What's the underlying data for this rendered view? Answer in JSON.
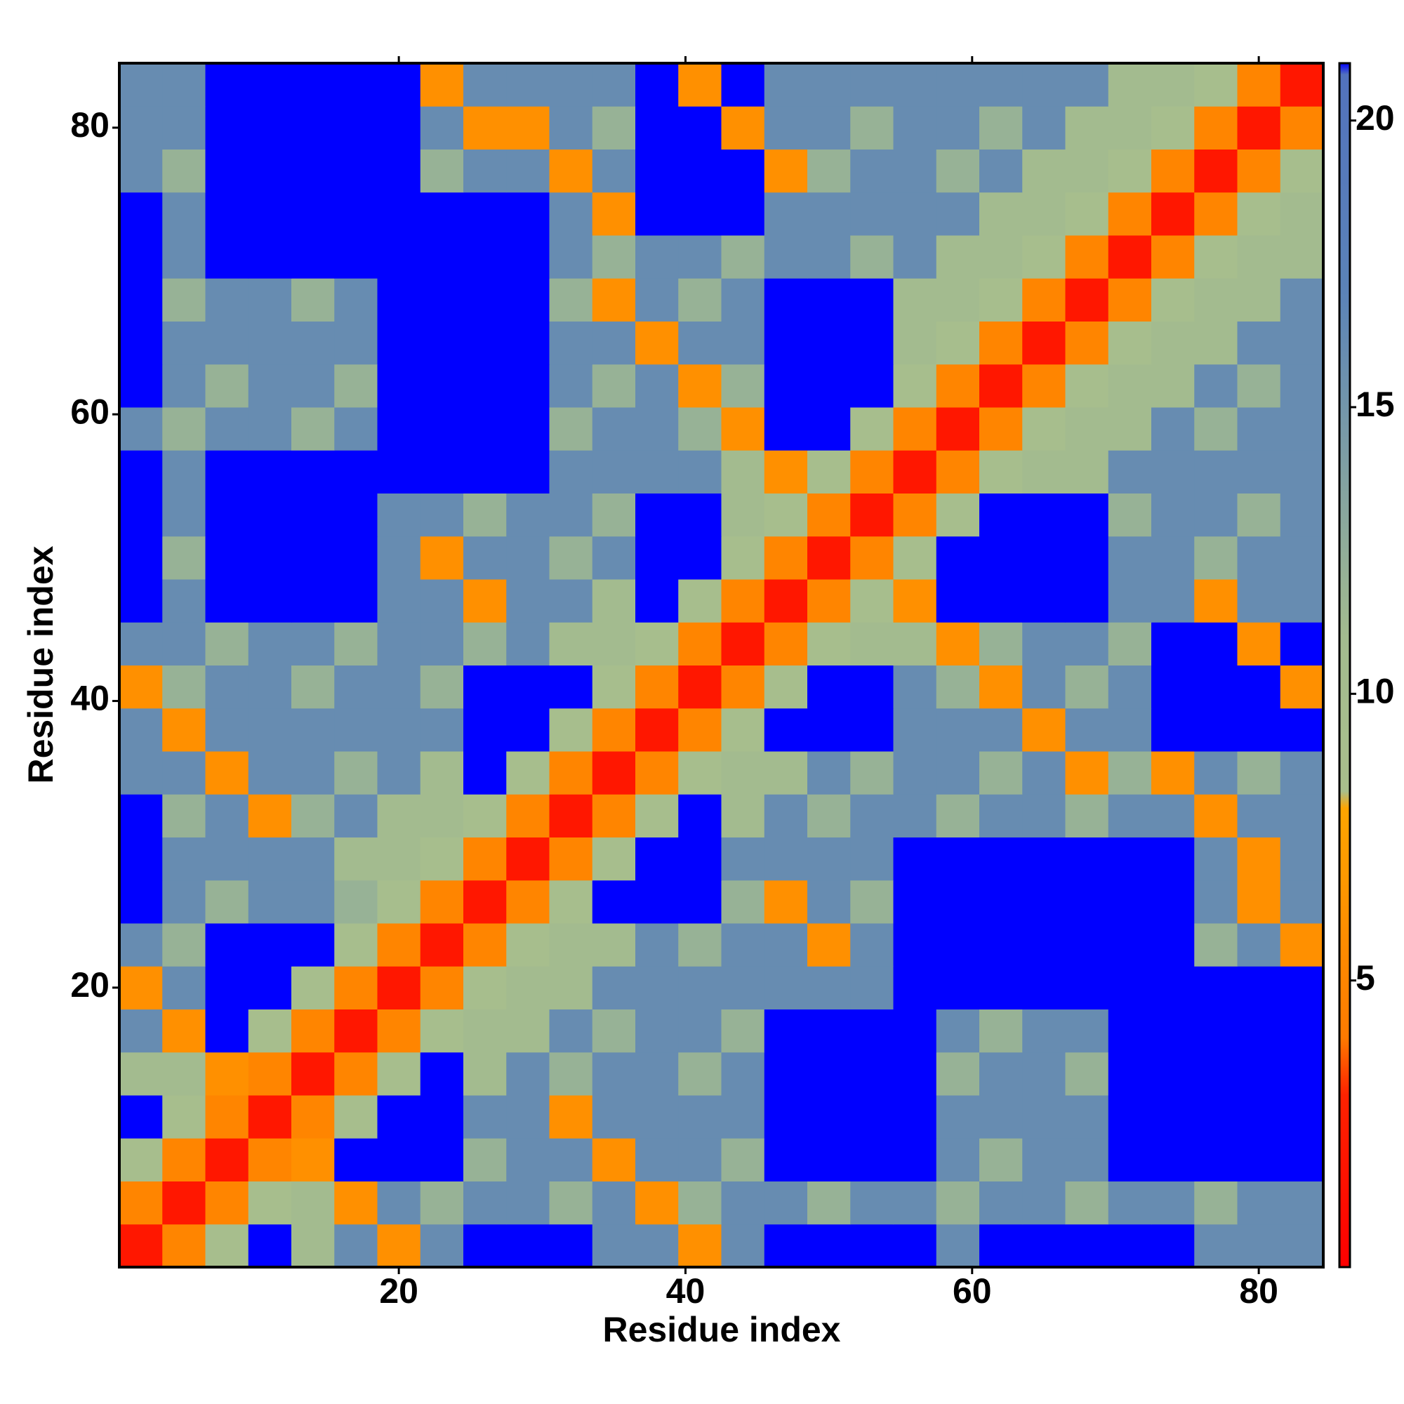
{
  "chart_data": {
    "type": "heatmap",
    "x_label": "Residue index",
    "y_label": "Residue index",
    "x": [
      2,
      5,
      8,
      11,
      14,
      17,
      20,
      23,
      26,
      29,
      32,
      35,
      38,
      41,
      44,
      47,
      50,
      53,
      56,
      59,
      62,
      65,
      68,
      71,
      74,
      77,
      80,
      83
    ],
    "y": [
      2,
      5,
      8,
      11,
      14,
      17,
      20,
      23,
      26,
      29,
      32,
      35,
      38,
      41,
      44,
      47,
      50,
      53,
      56,
      59,
      62,
      65,
      68,
      71,
      74,
      77,
      80,
      83
    ],
    "xlim": [
      0.5,
      84.5
    ],
    "ylim": [
      0.5,
      84.5
    ],
    "xticks": [
      20,
      40,
      60,
      80
    ],
    "yticks": [
      20,
      40,
      60,
      80
    ],
    "zlim": [
      0,
      21
    ],
    "zticks": [
      5,
      10,
      15,
      20
    ],
    "colorscale": [
      [
        0,
        "#ff0000"
      ],
      [
        3,
        "#ff2200"
      ],
      [
        4,
        "#ff7a00"
      ],
      [
        8,
        "#ffa500"
      ],
      [
        8.3,
        "#a9bf8c"
      ],
      [
        11,
        "#a3bb8f"
      ],
      [
        17,
        "#5b83b8"
      ],
      [
        20.8,
        "#5272bd"
      ],
      [
        21,
        "#0000ff"
      ]
    ],
    "z": [
      [
        2,
        5,
        9,
        24,
        11,
        16,
        6,
        16,
        24,
        24,
        24,
        16,
        16,
        6,
        16,
        24,
        24,
        24,
        24,
        16,
        24,
        24,
        24,
        24,
        24,
        16,
        16,
        16
      ],
      [
        5,
        2,
        5,
        9,
        11,
        6,
        16,
        12,
        16,
        16,
        12,
        16,
        6,
        12,
        16,
        16,
        12,
        16,
        16,
        12,
        16,
        16,
        12,
        16,
        16,
        12,
        16,
        16
      ],
      [
        9,
        5,
        2,
        5,
        6,
        24,
        24,
        24,
        12,
        16,
        16,
        6,
        16,
        16,
        12,
        24,
        24,
        24,
        24,
        16,
        12,
        16,
        16,
        24,
        24,
        24,
        24,
        24
      ],
      [
        24,
        9,
        5,
        2,
        5,
        9,
        24,
        24,
        16,
        16,
        6,
        16,
        16,
        16,
        16,
        24,
        24,
        24,
        24,
        16,
        16,
        16,
        16,
        24,
        24,
        24,
        24,
        24
      ],
      [
        11,
        11,
        6,
        5,
        2,
        5,
        9,
        24,
        11,
        16,
        12,
        16,
        16,
        12,
        16,
        24,
        24,
        24,
        24,
        12,
        16,
        16,
        12,
        24,
        24,
        24,
        24,
        24
      ],
      [
        16,
        6,
        24,
        9,
        5,
        2,
        5,
        9,
        11,
        11,
        16,
        12,
        16,
        16,
        12,
        24,
        24,
        24,
        24,
        16,
        12,
        16,
        16,
        24,
        24,
        24,
        24,
        24
      ],
      [
        6,
        16,
        24,
        24,
        9,
        5,
        2,
        5,
        9,
        11,
        11,
        16,
        16,
        16,
        16,
        16,
        16,
        16,
        24,
        24,
        24,
        24,
        24,
        24,
        24,
        24,
        24,
        24
      ],
      [
        16,
        12,
        24,
        24,
        24,
        9,
        5,
        2,
        5,
        9,
        11,
        11,
        16,
        12,
        16,
        16,
        6,
        16,
        24,
        24,
        24,
        24,
        24,
        24,
        24,
        12,
        16,
        6
      ],
      [
        24,
        16,
        12,
        16,
        16,
        12,
        9,
        5,
        2,
        5,
        9,
        24,
        24,
        24,
        12,
        6,
        16,
        12,
        24,
        24,
        24,
        24,
        24,
        24,
        24,
        16,
        6,
        16
      ],
      [
        24,
        16,
        16,
        16,
        16,
        11,
        11,
        9,
        5,
        2,
        5,
        9,
        24,
        24,
        16,
        16,
        16,
        16,
        24,
        24,
        24,
        24,
        24,
        24,
        24,
        16,
        6,
        16
      ],
      [
        24,
        12,
        16,
        6,
        12,
        16,
        11,
        11,
        9,
        5,
        2,
        5,
        9,
        24,
        11,
        16,
        12,
        16,
        16,
        12,
        16,
        16,
        12,
        16,
        16,
        6,
        16,
        16
      ],
      [
        16,
        16,
        6,
        16,
        16,
        12,
        16,
        11,
        24,
        9,
        5,
        2,
        5,
        9,
        11,
        11,
        16,
        12,
        16,
        16,
        12,
        16,
        6,
        12,
        6,
        16,
        12,
        16
      ],
      [
        16,
        6,
        16,
        16,
        16,
        16,
        16,
        16,
        24,
        24,
        9,
        5,
        2,
        5,
        9,
        24,
        24,
        24,
        16,
        16,
        16,
        6,
        16,
        16,
        24,
        24,
        24,
        24
      ],
      [
        6,
        12,
        16,
        16,
        12,
        16,
        16,
        12,
        24,
        24,
        24,
        9,
        5,
        2,
        5,
        9,
        24,
        24,
        16,
        12,
        6,
        16,
        12,
        16,
        24,
        24,
        24,
        6
      ],
      [
        16,
        16,
        12,
        16,
        16,
        12,
        16,
        16,
        12,
        16,
        11,
        11,
        9,
        5,
        2,
        5,
        9,
        11,
        11,
        6,
        12,
        16,
        16,
        12,
        24,
        24,
        6,
        24
      ],
      [
        24,
        16,
        24,
        24,
        24,
        24,
        16,
        16,
        6,
        16,
        16,
        11,
        24,
        9,
        5,
        2,
        5,
        9,
        6,
        24,
        24,
        24,
        24,
        16,
        16,
        6,
        16,
        16
      ],
      [
        24,
        12,
        24,
        24,
        24,
        24,
        16,
        6,
        16,
        16,
        12,
        16,
        24,
        24,
        9,
        5,
        2,
        5,
        9,
        24,
        24,
        24,
        24,
        16,
        16,
        12,
        16,
        16
      ],
      [
        24,
        16,
        24,
        24,
        24,
        24,
        16,
        16,
        12,
        16,
        16,
        12,
        24,
        24,
        11,
        9,
        5,
        2,
        5,
        9,
        24,
        24,
        24,
        12,
        16,
        16,
        12,
        16
      ],
      [
        24,
        16,
        24,
        24,
        24,
        24,
        24,
        24,
        24,
        24,
        16,
        16,
        16,
        16,
        11,
        6,
        9,
        5,
        2,
        5,
        9,
        11,
        11,
        16,
        16,
        16,
        16,
        16
      ],
      [
        16,
        12,
        16,
        16,
        12,
        16,
        24,
        24,
        24,
        24,
        12,
        16,
        16,
        12,
        6,
        24,
        24,
        9,
        5,
        2,
        5,
        9,
        11,
        11,
        16,
        12,
        16,
        16
      ],
      [
        24,
        16,
        12,
        16,
        16,
        12,
        24,
        24,
        24,
        24,
        16,
        12,
        16,
        6,
        12,
        24,
        24,
        24,
        9,
        5,
        2,
        5,
        9,
        11,
        11,
        16,
        12,
        16
      ],
      [
        24,
        16,
        16,
        16,
        16,
        16,
        24,
        24,
        24,
        24,
        16,
        16,
        6,
        16,
        16,
        24,
        24,
        24,
        11,
        9,
        5,
        2,
        5,
        9,
        11,
        11,
        16,
        16
      ],
      [
        24,
        12,
        16,
        16,
        12,
        16,
        24,
        24,
        24,
        24,
        12,
        6,
        16,
        12,
        16,
        24,
        24,
        24,
        11,
        11,
        9,
        5,
        2,
        5,
        9,
        11,
        11,
        16
      ],
      [
        24,
        16,
        24,
        24,
        24,
        24,
        24,
        24,
        24,
        24,
        16,
        12,
        16,
        16,
        12,
        16,
        16,
        12,
        16,
        11,
        11,
        9,
        5,
        2,
        5,
        9,
        11,
        11
      ],
      [
        24,
        16,
        24,
        24,
        24,
        24,
        24,
        24,
        24,
        24,
        16,
        6,
        24,
        24,
        24,
        16,
        16,
        16,
        16,
        16,
        11,
        11,
        9,
        5,
        2,
        5,
        9,
        11
      ],
      [
        16,
        12,
        24,
        24,
        24,
        24,
        24,
        12,
        16,
        16,
        6,
        16,
        24,
        24,
        24,
        6,
        12,
        16,
        16,
        12,
        16,
        11,
        11,
        9,
        5,
        2,
        5,
        9
      ],
      [
        16,
        16,
        24,
        24,
        24,
        24,
        24,
        16,
        6,
        6,
        16,
        12,
        24,
        24,
        6,
        16,
        16,
        12,
        16,
        16,
        12,
        16,
        11,
        11,
        9,
        5,
        2,
        5
      ],
      [
        16,
        16,
        24,
        24,
        24,
        24,
        24,
        6,
        16,
        16,
        16,
        16,
        24,
        6,
        24,
        16,
        16,
        16,
        16,
        16,
        16,
        16,
        16,
        11,
        11,
        9,
        5,
        2
      ]
    ]
  }
}
